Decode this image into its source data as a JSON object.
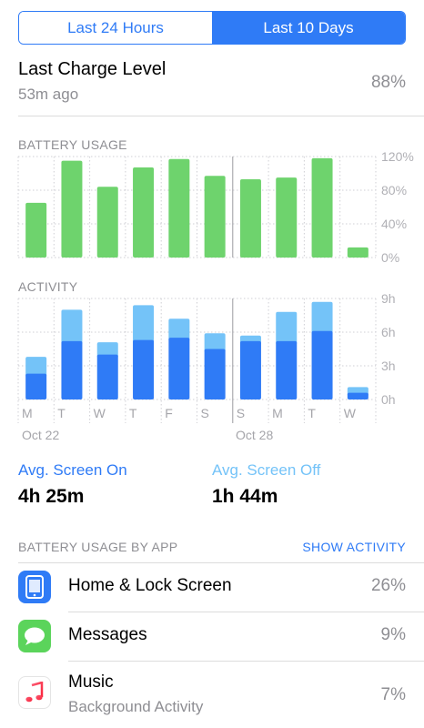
{
  "segment": {
    "option1": "Last 24 Hours",
    "option2": "Last 10 Days",
    "selected": "Last 10 Days"
  },
  "last_charge": {
    "title": "Last Charge Level",
    "time": "53m ago",
    "value": "88%"
  },
  "battery_usage": {
    "label": "BATTERY USAGE",
    "y_ticks": [
      "120%",
      "80%",
      "40%",
      "0%"
    ]
  },
  "activity": {
    "label": "ACTIVITY",
    "y_ticks": [
      "9h",
      "6h",
      "3h",
      "0h"
    ]
  },
  "x_labels": [
    "M",
    "T",
    "W",
    "T",
    "F",
    "S",
    "S",
    "M",
    "T",
    "W"
  ],
  "dates": [
    "Oct 22",
    "Oct 28"
  ],
  "avg": {
    "screen_on_label": "Avg. Screen On",
    "screen_on_value": "4h 25m",
    "screen_off_label": "Avg. Screen Off",
    "screen_off_value": "1h 44m"
  },
  "apps_header": {
    "left": "BATTERY USAGE BY APP",
    "right": "SHOW ACTIVITY"
  },
  "apps": [
    {
      "name": "Home & Lock Screen",
      "sub": "",
      "pct": "26%",
      "icon": "home-lock-screen-icon"
    },
    {
      "name": "Messages",
      "sub": "",
      "pct": "9%",
      "icon": "messages-icon"
    },
    {
      "name": "Music",
      "sub": "Background Activity",
      "pct": "7%",
      "icon": "music-icon"
    }
  ],
  "colors": {
    "accent": "#2f7bf6",
    "battery_bar": "#6ed36d",
    "screen_on": "#2f7bf6",
    "screen_off": "#74c3f8"
  },
  "chart_data": [
    {
      "type": "bar",
      "title": "BATTERY USAGE",
      "categories": [
        "M",
        "T",
        "W",
        "T",
        "F",
        "S",
        "S",
        "M",
        "T",
        "W"
      ],
      "values": [
        65,
        115,
        84,
        107,
        117,
        97,
        93,
        95,
        118,
        12
      ],
      "ylim": [
        0,
        120
      ],
      "y_unit": "%",
      "grid": true
    },
    {
      "type": "bar",
      "title": "ACTIVITY",
      "stacked": true,
      "categories": [
        "M",
        "T",
        "W",
        "T",
        "F",
        "S",
        "S",
        "M",
        "T",
        "W"
      ],
      "series": [
        {
          "name": "Avg. Screen On",
          "values": [
            2.3,
            5.2,
            4.0,
            5.3,
            5.5,
            4.5,
            5.2,
            5.2,
            6.1,
            0.6
          ]
        },
        {
          "name": "Avg. Screen Off",
          "values": [
            1.5,
            2.8,
            1.1,
            3.1,
            1.7,
            1.4,
            0.5,
            2.6,
            2.6,
            0.5
          ]
        }
      ],
      "ylim": [
        0,
        9
      ],
      "y_unit": "h",
      "grid": true
    }
  ]
}
